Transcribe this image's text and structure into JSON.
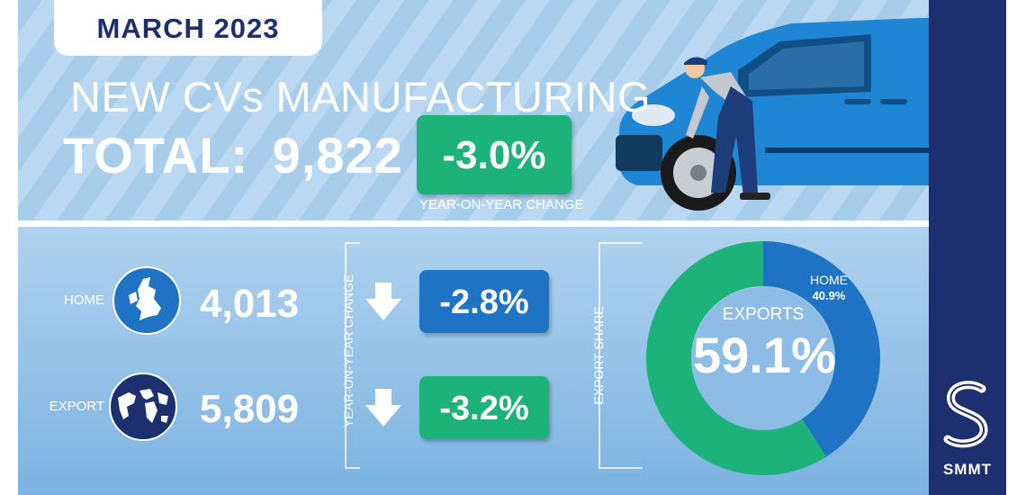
{
  "header": {
    "period": "MARCH 2023",
    "title": "NEW CVs MANUFACTURING",
    "total_label": "TOTAL:",
    "total_value": "9,822",
    "total_change": "-3.0%",
    "total_change_caption": "YEAR-ON-YEAR CHANGE"
  },
  "rows": [
    {
      "label": "HOME",
      "value": "4,013",
      "change": "-2.8%",
      "change_color": "#1f73c4",
      "icon": "uk-map-icon"
    },
    {
      "label": "EXPORT",
      "value": "5,809",
      "change": "-3.2%",
      "change_color": "#1db27a",
      "icon": "world-map-icon"
    }
  ],
  "yoy_caption": "YEAR-ON-YEAR CHANGE",
  "share_caption": "EXPORT SHARE",
  "share": {
    "exports_label": "EXPORTS",
    "exports_value": "59.1%",
    "exports_fraction": 0.591,
    "home_label": "HOME",
    "home_value": "40.9%",
    "home_fraction": 0.409
  },
  "brand": {
    "name": "SMMT"
  },
  "colors": {
    "navy": "#1c2f6e",
    "green": "#1db27a",
    "blue": "#1f73c4",
    "van_blue": "#1f86d6"
  }
}
